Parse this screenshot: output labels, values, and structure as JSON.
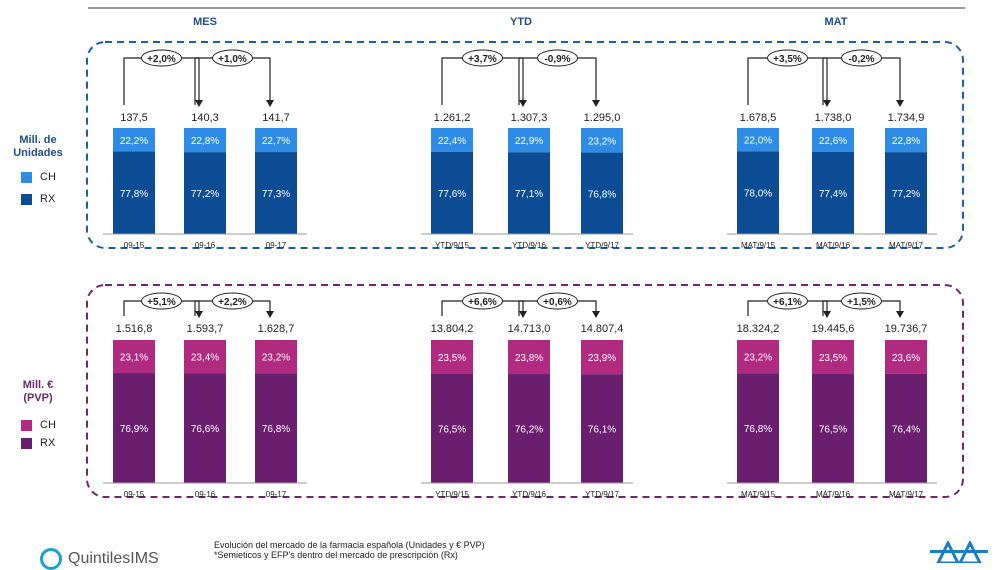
{
  "column_headers": [
    "MES",
    "YTD",
    "MAT"
  ],
  "colors": {
    "header": "#1f4e8c",
    "units_dark": "#0b4c95",
    "units_light": "#2e8ce6",
    "euro_dark": "#6a1e6e",
    "euro_light": "#b02a7f",
    "units_border": "#1f5fa8",
    "euro_border": "#6b2a6b"
  },
  "panels": [
    {
      "title": "Mill. de\nUnidades",
      "legend": [
        {
          "label": "CH",
          "color": "#2e8ce6"
        },
        {
          "label": "RX",
          "color": "#0b4c95"
        }
      ]
    },
    {
      "title": "Mill. €\n(PVP)",
      "legend": [
        {
          "label": "CH",
          "color": "#b02a7f"
        },
        {
          "label": "RX",
          "color": "#6a1e6e"
        }
      ]
    }
  ],
  "chart_data": [
    {
      "type": "bar",
      "panel": "units",
      "group": "MES",
      "categories": [
        "09-15",
        "09-16",
        "09-17"
      ],
      "totals": [
        "137,5",
        "140,3",
        "141,7"
      ],
      "series": [
        {
          "name": "CH",
          "values": [
            22.2,
            22.8,
            22.7
          ],
          "labels": [
            "22,2%",
            "22,8%",
            "22,7%"
          ]
        },
        {
          "name": "RX",
          "values": [
            77.8,
            77.2,
            77.3
          ],
          "labels": [
            "77,8%",
            "77,2%",
            "77,3%"
          ]
        }
      ],
      "growth": [
        "+2,0%",
        "+1,0%"
      ]
    },
    {
      "type": "bar",
      "panel": "units",
      "group": "YTD",
      "categories": [
        "YTD/9/15",
        "YTD/9/16",
        "YTD/9/17"
      ],
      "totals": [
        "1.261,2",
        "1.307,3",
        "1.295,0"
      ],
      "series": [
        {
          "name": "CH",
          "values": [
            22.4,
            22.9,
            23.2
          ],
          "labels": [
            "22,4%",
            "22,9%",
            "23,2%"
          ]
        },
        {
          "name": "RX",
          "values": [
            77.6,
            77.1,
            76.8
          ],
          "labels": [
            "77,6%",
            "77,1%",
            "76,8%"
          ]
        }
      ],
      "growth": [
        "+3,7%",
        "-0,9%"
      ]
    },
    {
      "type": "bar",
      "panel": "units",
      "group": "MAT",
      "categories": [
        "MAT/9/15",
        "MAT/9/16",
        "MAT/9/17"
      ],
      "totals": [
        "1.678,5",
        "1.738,0",
        "1.734,9"
      ],
      "series": [
        {
          "name": "CH",
          "values": [
            22.0,
            22.6,
            22.8
          ],
          "labels": [
            "22,0%",
            "22,6%",
            "22,8%"
          ]
        },
        {
          "name": "RX",
          "values": [
            78.0,
            77.4,
            77.2
          ],
          "labels": [
            "78,0%",
            "77,4%",
            "77,2%"
          ]
        }
      ],
      "growth": [
        "+3,5%",
        "-0,2%"
      ]
    },
    {
      "type": "bar",
      "panel": "euros",
      "group": "MES",
      "categories": [
        "09-15",
        "09-16",
        "09-17"
      ],
      "totals": [
        "1.516,8",
        "1.593,7",
        "1.628,7"
      ],
      "series": [
        {
          "name": "CH",
          "values": [
            23.1,
            23.4,
            23.2
          ],
          "labels": [
            "23,1%",
            "23,4%",
            "23,2%"
          ]
        },
        {
          "name": "RX",
          "values": [
            76.9,
            76.6,
            76.8
          ],
          "labels": [
            "76,9%",
            "76,6%",
            "76,8%"
          ]
        }
      ],
      "growth": [
        "+5,1%",
        "+2,2%"
      ]
    },
    {
      "type": "bar",
      "panel": "euros",
      "group": "YTD",
      "categories": [
        "YTD/9/15",
        "YTD/9/16",
        "YTD/9/17"
      ],
      "totals": [
        "13.804,2",
        "14.713,0",
        "14.807,4"
      ],
      "series": [
        {
          "name": "CH",
          "values": [
            23.5,
            23.8,
            23.9
          ],
          "labels": [
            "23,5%",
            "23,8%",
            "23,9%"
          ]
        },
        {
          "name": "RX",
          "values": [
            76.5,
            76.2,
            76.1
          ],
          "labels": [
            "76,5%",
            "76,2%",
            "76,1%"
          ]
        }
      ],
      "growth": [
        "+6,6%",
        "+0,6%"
      ]
    },
    {
      "type": "bar",
      "panel": "euros",
      "group": "MAT",
      "categories": [
        "MAT/9/15",
        "MAT/9/16",
        "MAT/9/17"
      ],
      "totals": [
        "18.324,2",
        "19.445,6",
        "19.736,7"
      ],
      "series": [
        {
          "name": "CH",
          "values": [
            23.2,
            23.5,
            23.6
          ],
          "labels": [
            "23,2%",
            "23,5%",
            "23,6%"
          ]
        },
        {
          "name": "RX",
          "values": [
            76.8,
            76.5,
            76.4
          ],
          "labels": [
            "76,8%",
            "76,5%",
            "76,4%"
          ]
        }
      ],
      "growth": [
        "+6,1%",
        "+1,5%"
      ]
    }
  ],
  "footer": {
    "line1": "Evolución del mercado de la farmacia española (Unidades y € PVP)",
    "line2": "*Semieticos y EFP's dentro del mercado de prescripción (Rx)"
  },
  "logo": {
    "text": "QuintilesIMS"
  }
}
